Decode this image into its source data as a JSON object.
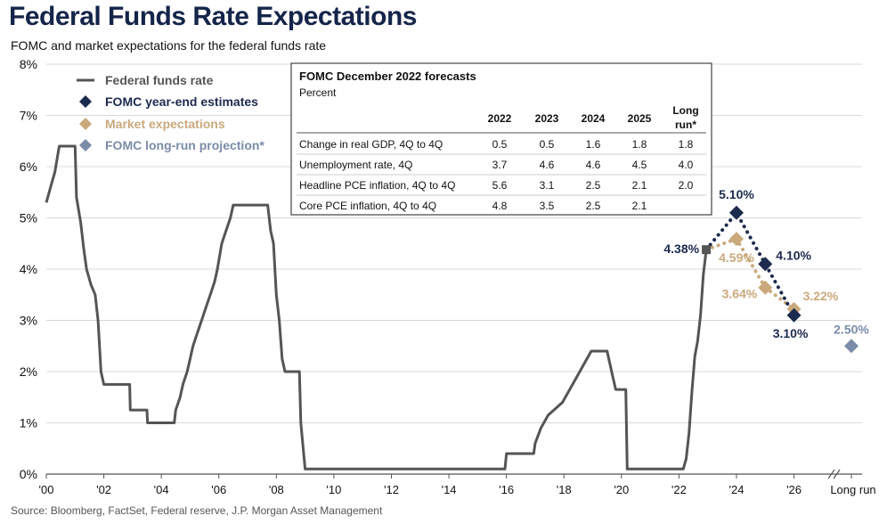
{
  "title": "Federal Funds Rate Expectations",
  "subtitle": "FOMC and market expectations for the federal funds rate",
  "source": "Source: Bloomberg, FactSet, Federal reserve, J.P. Morgan Asset Management",
  "colors": {
    "fed_funds": "#555555",
    "fomc": "#1c2a4e",
    "market": "#c9a97c",
    "long_run": "#7a8ca8",
    "grid": "#d9d9d9"
  },
  "chart_data": {
    "type": "line",
    "title": "Federal Funds Rate Expectations",
    "ylim": [
      0,
      8
    ],
    "xlim": [
      2000,
      2027.5
    ],
    "yticks": [
      0,
      1,
      2,
      3,
      4,
      5,
      6,
      7,
      8
    ],
    "ytick_labels": [
      "0%",
      "1%",
      "2%",
      "3%",
      "4%",
      "5%",
      "6%",
      "7%",
      "8%"
    ],
    "xticks": [
      2000,
      2002,
      2004,
      2006,
      2008,
      2010,
      2012,
      2014,
      2016,
      2018,
      2020,
      2022,
      2024,
      2026
    ],
    "xtick_labels": [
      "'00",
      "'02",
      "'04",
      "'06",
      "'08",
      "'10",
      "'12",
      "'14",
      "'16",
      "'18",
      "'20",
      "'22",
      "'24",
      "'26"
    ],
    "long_run_tick_label": "Long run",
    "grid": true,
    "legend_position": "top-left",
    "series": [
      {
        "name": "Federal funds rate",
        "style": "step-line",
        "points": [
          [
            2000.0,
            5.3
          ],
          [
            2000.15,
            5.6
          ],
          [
            2000.3,
            5.9
          ],
          [
            2000.45,
            6.4
          ],
          [
            2001.0,
            6.4
          ],
          [
            2001.05,
            5.4
          ],
          [
            2001.2,
            4.9
          ],
          [
            2001.3,
            4.4
          ],
          [
            2001.4,
            4.0
          ],
          [
            2001.55,
            3.7
          ],
          [
            2001.7,
            3.5
          ],
          [
            2001.8,
            3.0
          ],
          [
            2001.9,
            2.0
          ],
          [
            2002.0,
            1.75
          ],
          [
            2002.9,
            1.75
          ],
          [
            2002.92,
            1.25
          ],
          [
            2003.5,
            1.25
          ],
          [
            2003.52,
            1.0
          ],
          [
            2004.45,
            1.0
          ],
          [
            2004.5,
            1.25
          ],
          [
            2004.65,
            1.5
          ],
          [
            2004.75,
            1.75
          ],
          [
            2004.9,
            2.0
          ],
          [
            2005.0,
            2.25
          ],
          [
            2005.1,
            2.5
          ],
          [
            2005.25,
            2.75
          ],
          [
            2005.4,
            3.0
          ],
          [
            2005.55,
            3.25
          ],
          [
            2005.7,
            3.5
          ],
          [
            2005.85,
            3.75
          ],
          [
            2005.95,
            4.0
          ],
          [
            2006.1,
            4.5
          ],
          [
            2006.25,
            4.75
          ],
          [
            2006.4,
            5.0
          ],
          [
            2006.5,
            5.25
          ],
          [
            2007.7,
            5.25
          ],
          [
            2007.8,
            4.75
          ],
          [
            2007.9,
            4.5
          ],
          [
            2008.0,
            3.5
          ],
          [
            2008.1,
            3.0
          ],
          [
            2008.2,
            2.25
          ],
          [
            2008.3,
            2.0
          ],
          [
            2008.8,
            2.0
          ],
          [
            2008.85,
            1.0
          ],
          [
            2009.0,
            0.1
          ],
          [
            2015.95,
            0.1
          ],
          [
            2016.0,
            0.4
          ],
          [
            2016.95,
            0.4
          ],
          [
            2017.0,
            0.6
          ],
          [
            2017.2,
            0.9
          ],
          [
            2017.45,
            1.15
          ],
          [
            2017.95,
            1.4
          ],
          [
            2018.2,
            1.65
          ],
          [
            2018.45,
            1.9
          ],
          [
            2018.7,
            2.15
          ],
          [
            2018.95,
            2.4
          ],
          [
            2019.5,
            2.4
          ],
          [
            2019.6,
            2.15
          ],
          [
            2019.7,
            1.9
          ],
          [
            2019.8,
            1.65
          ],
          [
            2020.15,
            1.65
          ],
          [
            2020.2,
            0.1
          ],
          [
            2022.15,
            0.1
          ],
          [
            2022.25,
            0.3
          ],
          [
            2022.35,
            0.8
          ],
          [
            2022.45,
            1.6
          ],
          [
            2022.55,
            2.3
          ],
          [
            2022.65,
            2.6
          ],
          [
            2022.75,
            3.1
          ],
          [
            2022.85,
            3.9
          ],
          [
            2022.95,
            4.38
          ]
        ]
      },
      {
        "name": "FOMC year-end estimates",
        "style": "dotted-diamond",
        "points": [
          [
            2022.95,
            4.38
          ],
          [
            2024.0,
            5.1
          ],
          [
            2025.0,
            4.1
          ],
          [
            2026.0,
            3.1
          ]
        ]
      },
      {
        "name": "Market expectations",
        "style": "dotted-diamond",
        "points": [
          [
            2022.95,
            4.38
          ],
          [
            2024.0,
            4.59
          ],
          [
            2025.0,
            3.64
          ],
          [
            2026.0,
            3.22
          ]
        ]
      },
      {
        "name": "FOMC long-run projection*",
        "style": "diamond",
        "points": [
          [
            "Long run",
            2.5
          ]
        ]
      }
    ],
    "annotations": [
      {
        "text": "4.38%",
        "series": "fomc",
        "x": 2022.95,
        "y": 4.38,
        "anchor": "end",
        "dx": -8,
        "dy": 4,
        "color": "#1c2a4e"
      },
      {
        "text": "5.10%",
        "series": "fomc",
        "x": 2024.0,
        "y": 5.1,
        "anchor": "middle",
        "dx": 0,
        "dy": -16,
        "color": "#1c2a4e"
      },
      {
        "text": "4.59%",
        "series": "market",
        "x": 2024.0,
        "y": 4.59,
        "anchor": "middle",
        "dx": 0,
        "dy": 26,
        "color": "#c9a97c"
      },
      {
        "text": "4.10%",
        "series": "fomc",
        "x": 2025.0,
        "y": 4.1,
        "anchor": "start",
        "dx": 12,
        "dy": -5,
        "color": "#1c2a4e"
      },
      {
        "text": "3.64%",
        "series": "market",
        "x": 2025.0,
        "y": 3.64,
        "anchor": "end",
        "dx": -9,
        "dy": 12,
        "color": "#c9a97c"
      },
      {
        "text": "3.22%",
        "series": "market",
        "x": 2026.0,
        "y": 3.22,
        "anchor": "start",
        "dx": 10,
        "dy": -10,
        "color": "#c9a97c"
      },
      {
        "text": "3.10%",
        "series": "fomc",
        "x": 2026.0,
        "y": 3.1,
        "anchor": "middle",
        "dx": -4,
        "dy": 25,
        "color": "#1c2a4e"
      },
      {
        "text": "2.50%",
        "series": "long_run",
        "x": "Long run",
        "y": 2.5,
        "anchor": "middle",
        "dx": 0,
        "dy": -14,
        "color": "#7a8ca8"
      }
    ]
  },
  "forecast_table": {
    "title": "FOMC December 2022 forecasts",
    "subtitle": "Percent",
    "columns": [
      "2022",
      "2023",
      "2024",
      "2025",
      "Long run*"
    ],
    "rows": [
      {
        "label": "Change in real GDP, 4Q to 4Q",
        "values": [
          "0.5",
          "0.5",
          "1.6",
          "1.8",
          "1.8"
        ]
      },
      {
        "label": "Unemployment rate, 4Q",
        "values": [
          "3.7",
          "4.6",
          "4.6",
          "4.5",
          "4.0"
        ]
      },
      {
        "label": "Headline PCE inflation, 4Q to 4Q",
        "values": [
          "5.6",
          "3.1",
          "2.5",
          "2.1",
          "2.0"
        ]
      },
      {
        "label": "Core PCE inflation, 4Q to 4Q",
        "values": [
          "4.8",
          "3.5",
          "2.5",
          "2.1",
          ""
        ]
      }
    ]
  }
}
